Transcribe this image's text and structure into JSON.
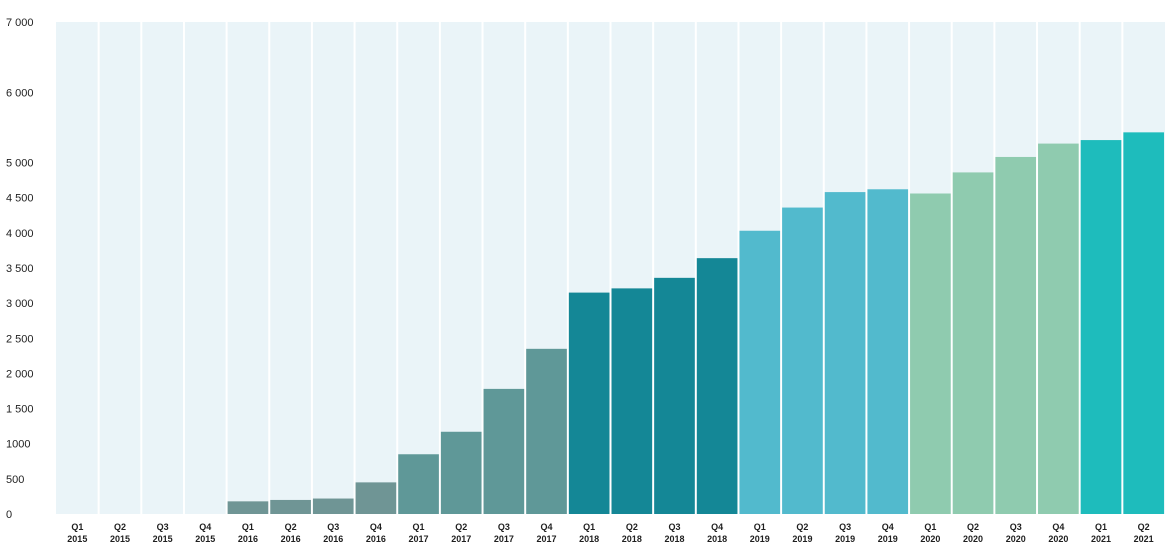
{
  "chart_data": {
    "type": "bar",
    "title": "",
    "xlabel": "",
    "ylabel": "",
    "ylim": [
      0,
      7000
    ],
    "y_ticks": [
      {
        "value": 0,
        "label": "0"
      },
      {
        "value": 500,
        "label": "500"
      },
      {
        "value": 1000,
        "label": "1000"
      },
      {
        "value": 1500,
        "label": "1 500"
      },
      {
        "value": 2000,
        "label": "2 000"
      },
      {
        "value": 2500,
        "label": "2 500"
      },
      {
        "value": 3000,
        "label": "3 000"
      },
      {
        "value": 3500,
        "label": "3 500"
      },
      {
        "value": 4000,
        "label": "4 000"
      },
      {
        "value": 4500,
        "label": "4 500"
      },
      {
        "value": 5000,
        "label": "5 000"
      },
      {
        "value": 6000,
        "label": "6 000"
      },
      {
        "value": 7000,
        "label": "7 000"
      }
    ],
    "grid": false,
    "categories": [
      {
        "quarter": "Q1",
        "year": "2015"
      },
      {
        "quarter": "Q2",
        "year": "2015"
      },
      {
        "quarter": "Q3",
        "year": "2015"
      },
      {
        "quarter": "Q4",
        "year": "2015"
      },
      {
        "quarter": "Q1",
        "year": "2016"
      },
      {
        "quarter": "Q2",
        "year": "2016"
      },
      {
        "quarter": "Q3",
        "year": "2016"
      },
      {
        "quarter": "Q4",
        "year": "2016"
      },
      {
        "quarter": "Q1",
        "year": "2017"
      },
      {
        "quarter": "Q2",
        "year": "2017"
      },
      {
        "quarter": "Q3",
        "year": "2017"
      },
      {
        "quarter": "Q4",
        "year": "2017"
      },
      {
        "quarter": "Q1",
        "year": "2018"
      },
      {
        "quarter": "Q2",
        "year": "2018"
      },
      {
        "quarter": "Q3",
        "year": "2018"
      },
      {
        "quarter": "Q4",
        "year": "2018"
      },
      {
        "quarter": "Q1",
        "year": "2019"
      },
      {
        "quarter": "Q2",
        "year": "2019"
      },
      {
        "quarter": "Q3",
        "year": "2019"
      },
      {
        "quarter": "Q4",
        "year": "2019"
      },
      {
        "quarter": "Q1",
        "year": "2020"
      },
      {
        "quarter": "Q2",
        "year": "2020"
      },
      {
        "quarter": "Q3",
        "year": "2020"
      },
      {
        "quarter": "Q4",
        "year": "2020"
      },
      {
        "quarter": "Q1",
        "year": "2021"
      },
      {
        "quarter": "Q2",
        "year": "2021"
      }
    ],
    "values": [
      0,
      0,
      0,
      0,
      180,
      200,
      220,
      450,
      850,
      1170,
      1780,
      2350,
      3150,
      3210,
      3360,
      3640,
      4030,
      4360,
      4580,
      4620,
      4560,
      4860,
      5080,
      5270,
      5320,
      5430
    ],
    "colors": {
      "plot_background": "#eaf4f8",
      "separator": "#ffffff",
      "year_2015": "#6f9595",
      "year_2016": "#6f9595",
      "year_2017": "#5f9898",
      "year_2018": "#148796",
      "year_2019": "#52bacd",
      "year_2020": "#8fcbaf",
      "year_2021": "#1ebcbc"
    }
  }
}
